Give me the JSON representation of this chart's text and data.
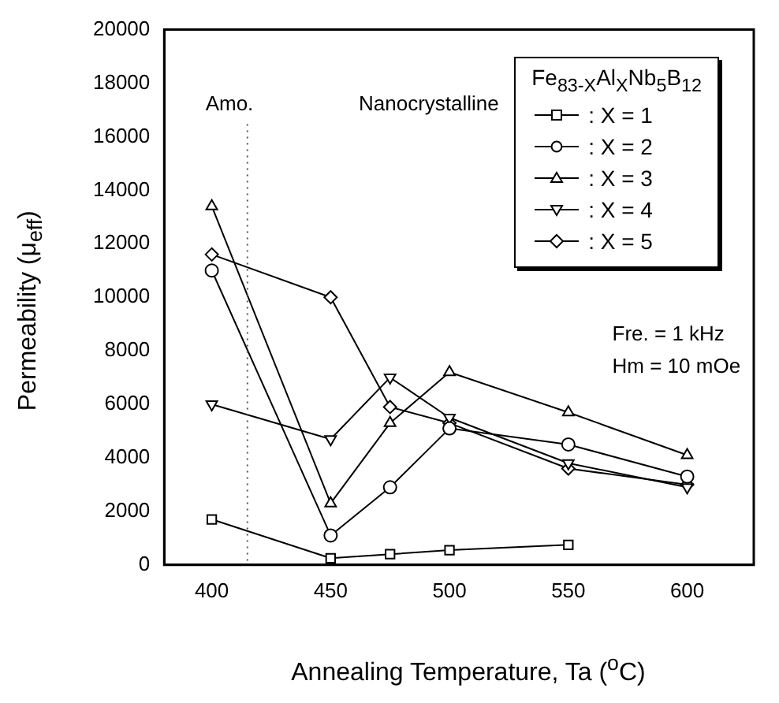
{
  "chart_data": {
    "type": "line",
    "xlabel": "Annealing Temperature, Ta ($^{o}$C)",
    "ylabel": "Permeability (μ$_{eff}$)",
    "legend_title": "Fe$_{83-X}$Al$_{X}$Nb$_{5}$B$_{12}$",
    "legend": "top right",
    "grid": false,
    "x": [
      400,
      450,
      475,
      500,
      550,
      600
    ],
    "xlim": [
      380,
      628
    ],
    "xticks": [
      400,
      450,
      500,
      550,
      600
    ],
    "ylim": [
      0,
      20000
    ],
    "yticks": [
      0,
      2000,
      4000,
      6000,
      8000,
      10000,
      12000,
      14000,
      16000,
      18000,
      20000
    ],
    "series": [
      {
        "name": ": X = 1",
        "color": "#000000",
        "marker": "square",
        "values": [
          1700,
          250,
          400,
          550,
          750,
          null
        ]
      },
      {
        "name": ": X = 2",
        "color": "#000000",
        "marker": "circle",
        "values": [
          11000,
          1100,
          2900,
          5100,
          4500,
          3300
        ]
      },
      {
        "name": ": X = 3",
        "color": "#000000",
        "marker": "triangle",
        "values": [
          13400,
          2300,
          5300,
          7200,
          5700,
          4100
        ]
      },
      {
        "name": ": X = 4",
        "color": "#000000",
        "marker": "triangle-down",
        "values": [
          6000,
          4700,
          7000,
          5500,
          3800,
          2900
        ]
      },
      {
        "name": ": X = 5",
        "color": "#000000",
        "marker": "diamond",
        "values": [
          11600,
          10000,
          5900,
          5300,
          3600,
          3000
        ]
      }
    ],
    "ref_lines": [
      {
        "axis": "x",
        "value": 415,
        "line_style": "dotted",
        "color": "#555555"
      }
    ],
    "annotations": [
      "Amo.",
      "Nanocrystalline",
      "Fre. = 1 kHz",
      "Hm = 10 mOe"
    ]
  }
}
